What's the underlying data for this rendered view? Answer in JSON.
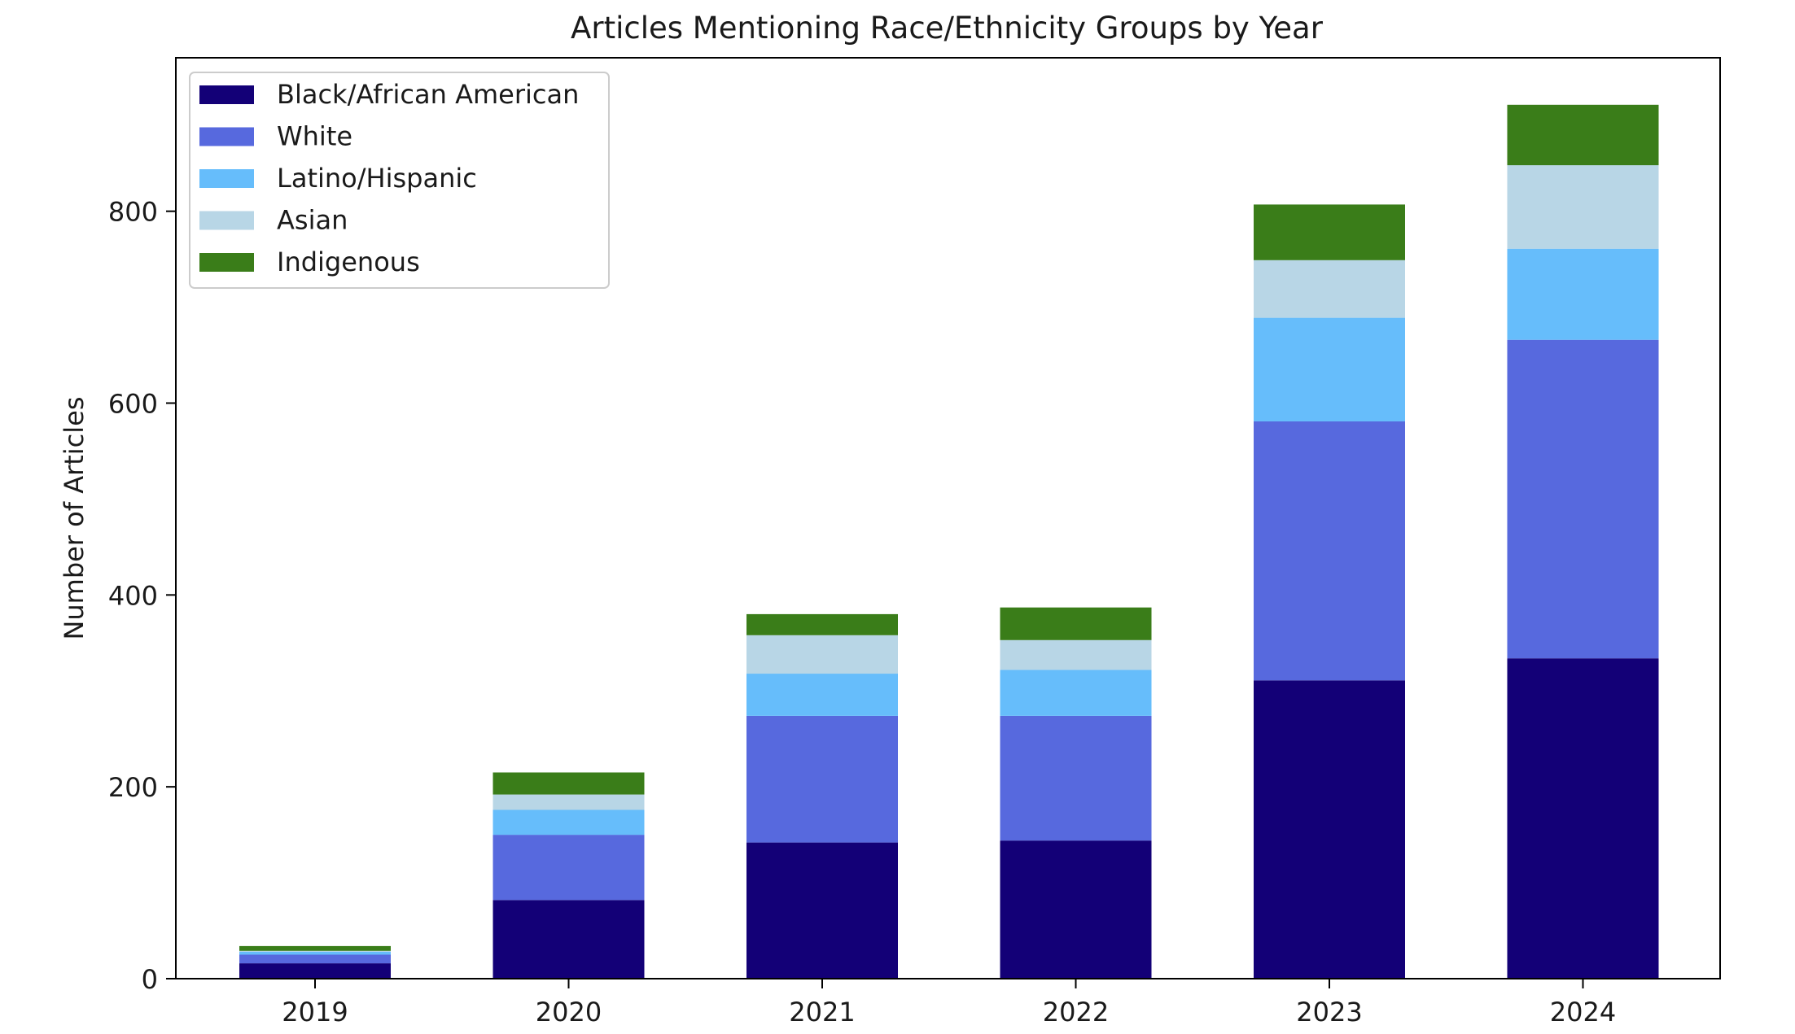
{
  "chart_data": {
    "type": "bar",
    "stacked": true,
    "title": "Articles Mentioning Race/Ethnicity Groups by Year",
    "xlabel": "",
    "ylabel": "Number of Articles",
    "categories": [
      "2019",
      "2020",
      "2021",
      "2022",
      "2023",
      "2024"
    ],
    "ylim": [
      0,
      960
    ],
    "yticks": [
      0,
      200,
      400,
      600,
      800
    ],
    "grid": false,
    "legend_position": "top-left",
    "series": [
      {
        "name": "Black/African American",
        "color": "#130077",
        "values": [
          16,
          82,
          142,
          144,
          311,
          334
        ]
      },
      {
        "name": "White",
        "color": "#5769DE",
        "values": [
          9,
          68,
          132,
          130,
          270,
          332
        ]
      },
      {
        "name": "Latino/Hispanic",
        "color": "#66BDFB",
        "values": [
          3,
          26,
          44,
          48,
          108,
          95
        ]
      },
      {
        "name": "Asian",
        "color": "#B8D6E6",
        "values": [
          1,
          16,
          40,
          31,
          60,
          87
        ]
      },
      {
        "name": "Indigenous",
        "color": "#3A7D19",
        "values": [
          5,
          23,
          22,
          34,
          58,
          63
        ]
      }
    ]
  }
}
